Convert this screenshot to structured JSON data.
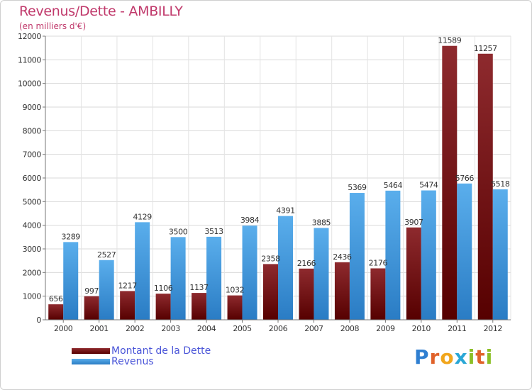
{
  "chart_data": {
    "type": "bar",
    "title": "Revenus/Dette - AMBILLY",
    "subtitle": "(en milliers d'€)",
    "categories": [
      "2000",
      "2001",
      "2002",
      "2003",
      "2004",
      "2005",
      "2006",
      "2007",
      "2008",
      "2009",
      "2010",
      "2011",
      "2012"
    ],
    "series": [
      {
        "name": "Montant de la Dette",
        "color": "#6b1010",
        "values": [
          656,
          997,
          1217,
          1106,
          1137,
          1032,
          2358,
          2166,
          2436,
          2176,
          3907,
          11589,
          11257
        ]
      },
      {
        "name": "Revenus",
        "color": "#3a8ed8",
        "values": [
          3289,
          2527,
          4129,
          3500,
          3513,
          3984,
          4391,
          3885,
          5369,
          5464,
          5474,
          5766,
          5518
        ]
      }
    ],
    "ylim": [
      0,
      12000
    ],
    "yticks": [
      0,
      1000,
      2000,
      3000,
      4000,
      5000,
      6000,
      7000,
      8000,
      9000,
      10000,
      11000,
      12000
    ],
    "grid": true,
    "legend_position": "bottom-left"
  },
  "logo": {
    "letters": [
      "P",
      "r",
      "o",
      "x",
      "i",
      "t",
      "i"
    ],
    "colors": [
      "#2f7fd1",
      "#e0622a",
      "#f1a61c",
      "#2aa7d6",
      "#8cbf26",
      "#e0622a",
      "#8cbf26"
    ]
  }
}
